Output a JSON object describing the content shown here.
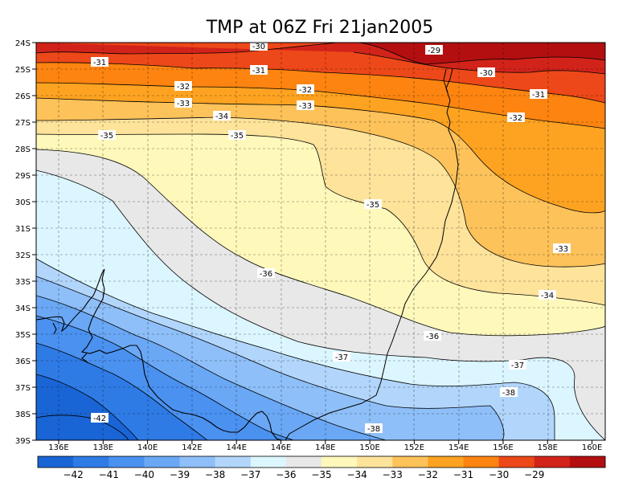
{
  "title": "TMP at 06Z Fri 21jan2005",
  "x_ticks": [
    "136E",
    "138E",
    "140E",
    "142E",
    "144E",
    "146E",
    "148E",
    "150E",
    "152E",
    "154E",
    "156E",
    "158E",
    "160E"
  ],
  "y_ticks": [
    "24S",
    "25S",
    "26S",
    "27S",
    "28S",
    "29S",
    "30S",
    "31S",
    "32S",
    "33S",
    "34S",
    "35S",
    "36S",
    "37S",
    "38S",
    "39S"
  ],
  "colorbar": {
    "labels": [
      "-42",
      "-41",
      "-40",
      "-39",
      "-38",
      "-37",
      "-36",
      "-35",
      "-34",
      "-33",
      "-32",
      "-31",
      "-30",
      "-29"
    ],
    "colors": [
      "#1965d5",
      "#2f7be6",
      "#4a91f0",
      "#6aa8f5",
      "#8ebff8",
      "#b2d6fb",
      "#dcf6ff",
      "#e8e8e8",
      "#fff8bb",
      "#fee39b",
      "#fdc25a",
      "#fea321",
      "#fd8410",
      "#ed4819",
      "#d2231a",
      "#b30f10"
    ]
  },
  "contour_labels": [
    "-30",
    "-29",
    "-31",
    "-31",
    "-30",
    "-32",
    "-32",
    "-31",
    "-33",
    "-33",
    "-32",
    "-34",
    "-35",
    "-35",
    "-35",
    "-33",
    "-36",
    "-34",
    "-36",
    "-37",
    "-37",
    "-38",
    "-38",
    "-42"
  ]
}
